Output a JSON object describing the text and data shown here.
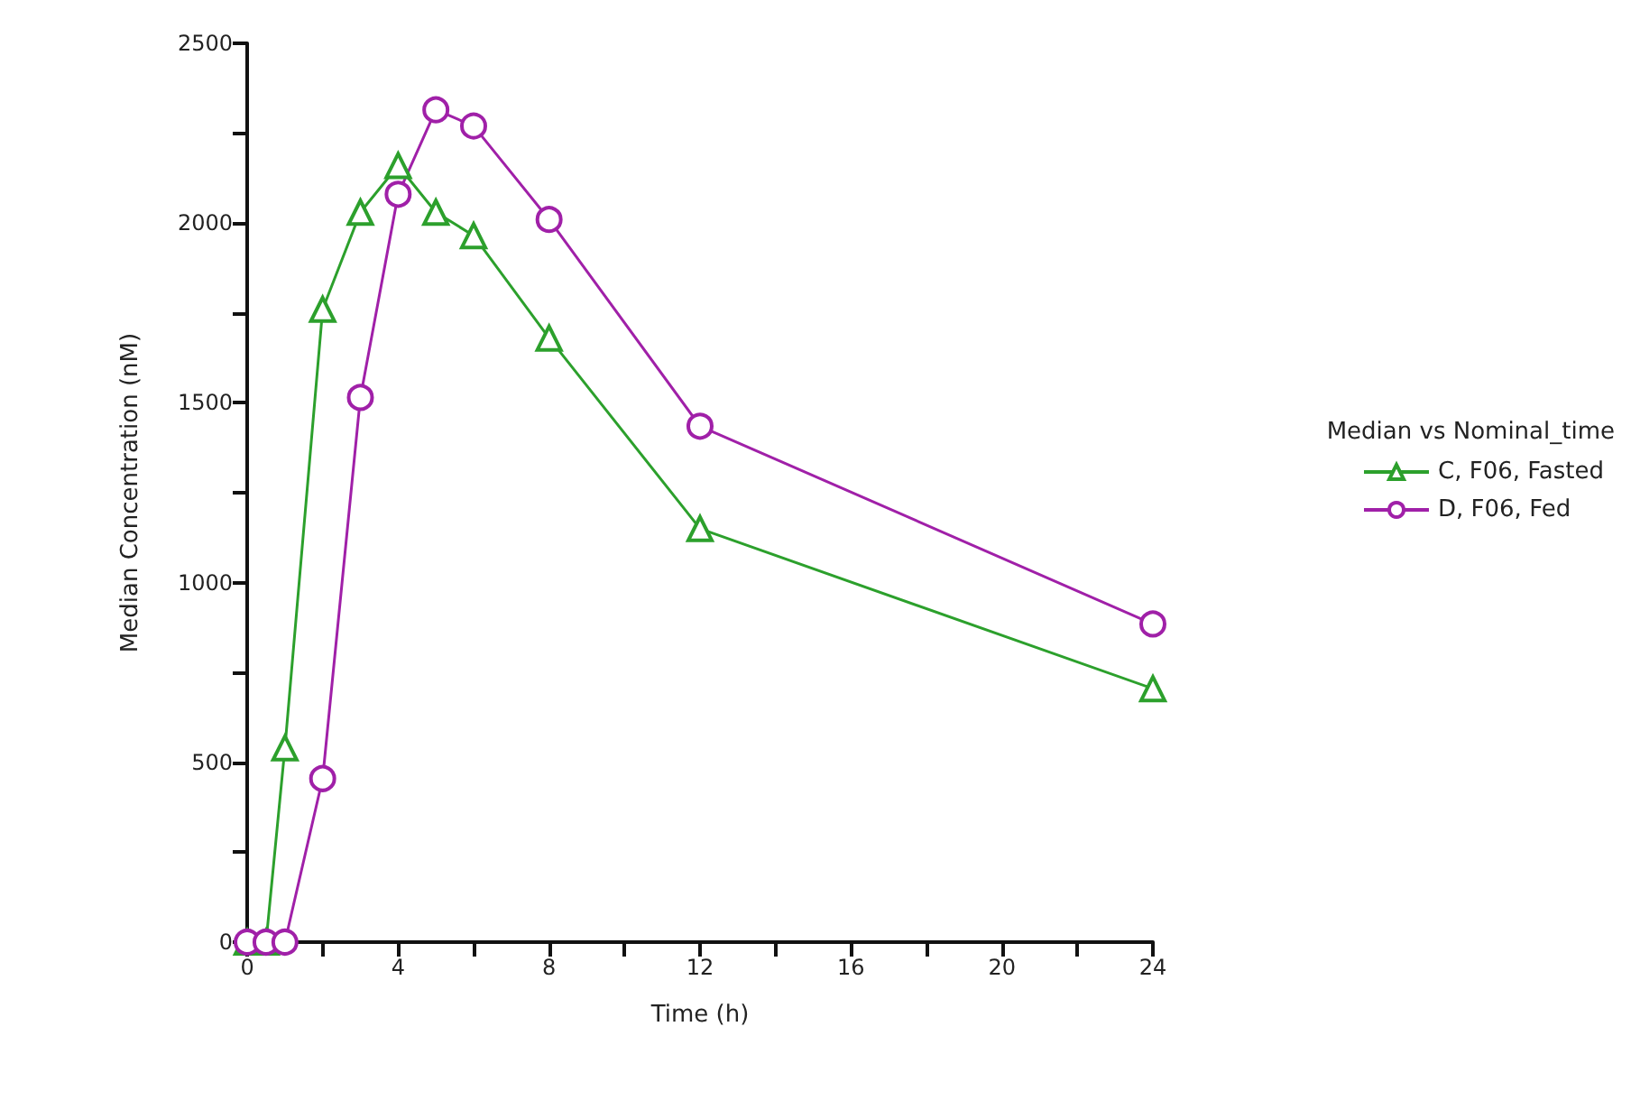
{
  "chart_data": {
    "type": "line",
    "xlabel": "Time (h)",
    "ylabel": "Median Concentration (nM)",
    "legend_title": "Median vs Nominal_time",
    "x": [
      0,
      0.5,
      1,
      2,
      3,
      4,
      5,
      6,
      8,
      12,
      24
    ],
    "series": [
      {
        "name": "C, F06, Fasted",
        "color": "#2ca02c",
        "marker": "triangle",
        "values": [
          0,
          0,
          540,
          1760,
          2030,
          2160,
          2030,
          1965,
          1680,
          1150,
          705
        ]
      },
      {
        "name": "D, F06, Fed",
        "color": "#a020a8",
        "marker": "circle",
        "values": [
          0,
          0,
          0,
          455,
          1515,
          2080,
          2315,
          2270,
          2010,
          1435,
          885
        ]
      }
    ],
    "xlim": [
      0,
      24
    ],
    "xticks": [
      0,
      {
        "value": 2,
        "label": null
      },
      4,
      {
        "value": 6,
        "label": null
      },
      8,
      {
        "value": 10,
        "label": null
      },
      12,
      {
        "value": 14,
        "label": null
      },
      16,
      {
        "value": 18,
        "label": null
      },
      20,
      {
        "value": 22,
        "label": null
      },
      24
    ],
    "ylim": [
      0,
      2500
    ],
    "yticks": [
      0,
      {
        "value": 250,
        "label": null
      },
      500,
      {
        "value": 750,
        "label": null
      },
      1000,
      {
        "value": 1250,
        "label": null
      },
      1500,
      {
        "value": 1750,
        "label": null
      },
      2000,
      {
        "value": 2250,
        "label": null
      },
      2500
    ],
    "grid": false,
    "legend": "right",
    "line_style": "solid"
  }
}
